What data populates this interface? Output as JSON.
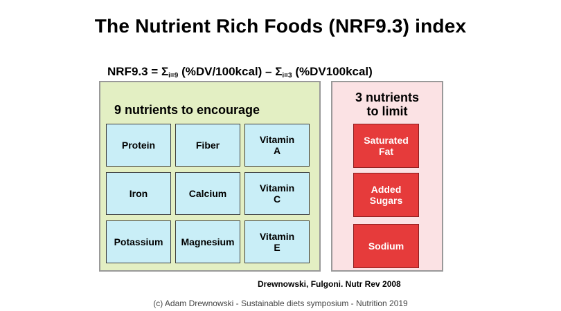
{
  "title": "The Nutrient Rich Foods (NRF9.3) index",
  "formula": {
    "part1": "NRF9.3 = Σ",
    "sub1": "i=9",
    "part2": " (%DV/100kcal) – Σ",
    "sub2": "i=3",
    "part3": " (%DV100kcal)"
  },
  "encourage": {
    "heading": "9 nutrients to encourage",
    "items": [
      "Protein",
      "Fiber",
      "Vitamin\nA",
      "Iron",
      "Calcium",
      "Vitamin\nC",
      "Potassium",
      "Magnesium",
      "Vitamin\nE"
    ]
  },
  "limit": {
    "heading": "3 nutrients\nto limit",
    "items": [
      "Saturated\nFat",
      "Added\nSugars",
      "Sodium"
    ]
  },
  "citation": "Drewnowski, Fulgoni.  Nutr Rev 2008",
  "footer": "(c) Adam Drewnowski -  Sustainable diets symposium - Nutrition 2019",
  "colors": {
    "encourage_panel": "#e3efc3",
    "encourage_cell": "#c9eef7",
    "limit_panel": "#fbe2e4",
    "limit_cell": "#e63b3b"
  }
}
